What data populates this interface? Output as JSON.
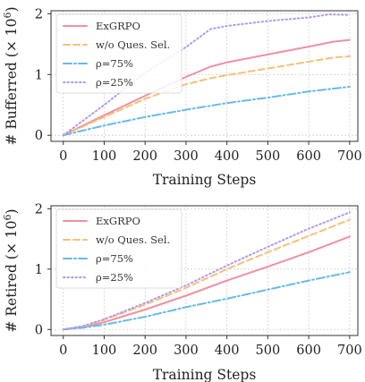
{
  "chart_data": [
    {
      "type": "line",
      "title": "",
      "xlabel": "Training Steps",
      "ylabel": "# Bufferred (× 10",
      "ylabel_exp": "6",
      "ylabel_close": ")",
      "xlim": [
        -30,
        720
      ],
      "ylim": [
        -0.1,
        2.05
      ],
      "xticks": [
        0,
        100,
        200,
        300,
        400,
        500,
        600,
        700
      ],
      "yticks": [
        0,
        1,
        2
      ],
      "grid": true,
      "legend_position": "upper-left",
      "series": [
        {
          "name": "ExGRPO",
          "color": "#f08fa3",
          "dash": "solid",
          "x": [
            0,
            100,
            200,
            300,
            360,
            400,
            500,
            600,
            660,
            700
          ],
          "y": [
            0,
            0.33,
            0.65,
            0.96,
            1.13,
            1.2,
            1.33,
            1.46,
            1.54,
            1.57
          ]
        },
        {
          "name": "w/o Ques. Sel.",
          "color": "#f5c178",
          "dash": "dashed",
          "x": [
            0,
            100,
            200,
            300,
            360,
            400,
            500,
            600,
            660,
            700
          ],
          "y": [
            0,
            0.3,
            0.6,
            0.84,
            0.94,
            0.99,
            1.1,
            1.21,
            1.28,
            1.3
          ]
        },
        {
          "name": "ρ=75%",
          "color": "#67b9e8",
          "dash": "dashdot",
          "x": [
            0,
            100,
            200,
            300,
            400,
            500,
            600,
            700
          ],
          "y": [
            0,
            0.16,
            0.3,
            0.42,
            0.53,
            0.62,
            0.72,
            0.8
          ]
        },
        {
          "name": "ρ=25%",
          "color": "#b09af0",
          "dash": "dotted",
          "x": [
            0,
            100,
            200,
            300,
            360,
            400,
            500,
            600,
            650,
            700
          ],
          "y": [
            0,
            0.5,
            1.03,
            1.45,
            1.75,
            1.8,
            1.88,
            1.94,
            1.99,
            1.98
          ]
        }
      ]
    },
    {
      "type": "line",
      "title": "",
      "xlabel": "Training Steps",
      "ylabel": "# Retired (× 10",
      "ylabel_exp": "6",
      "ylabel_close": ")",
      "xlim": [
        -30,
        720
      ],
      "ylim": [
        -0.1,
        2.05
      ],
      "xticks": [
        0,
        100,
        200,
        300,
        400,
        500,
        600,
        700
      ],
      "yticks": [
        0,
        1,
        2
      ],
      "grid": true,
      "legend_position": "upper-left",
      "series": [
        {
          "name": "ExGRPO",
          "color": "#f08fa3",
          "dash": "solid",
          "x": [
            0,
            50,
            100,
            200,
            300,
            400,
            500,
            600,
            700
          ],
          "y": [
            0,
            0.04,
            0.12,
            0.33,
            0.56,
            0.81,
            1.04,
            1.28,
            1.54
          ]
        },
        {
          "name": "w/o Ques. Sel.",
          "color": "#f5c178",
          "dash": "dashed",
          "x": [
            0,
            50,
            100,
            200,
            300,
            400,
            500,
            600,
            700
          ],
          "y": [
            0,
            0.05,
            0.16,
            0.41,
            0.69,
            1.0,
            1.28,
            1.55,
            1.82
          ]
        },
        {
          "name": "ρ=75%",
          "color": "#67b9e8",
          "dash": "dashdot",
          "x": [
            0,
            50,
            100,
            200,
            300,
            400,
            500,
            600,
            700
          ],
          "y": [
            0,
            0.03,
            0.08,
            0.21,
            0.37,
            0.51,
            0.66,
            0.81,
            0.95
          ]
        },
        {
          "name": "ρ=25%",
          "color": "#b09af0",
          "dash": "dotted",
          "x": [
            0,
            50,
            100,
            200,
            300,
            400,
            500,
            600,
            700
          ],
          "y": [
            0,
            0.06,
            0.17,
            0.44,
            0.73,
            1.06,
            1.37,
            1.67,
            1.94
          ]
        }
      ]
    }
  ]
}
